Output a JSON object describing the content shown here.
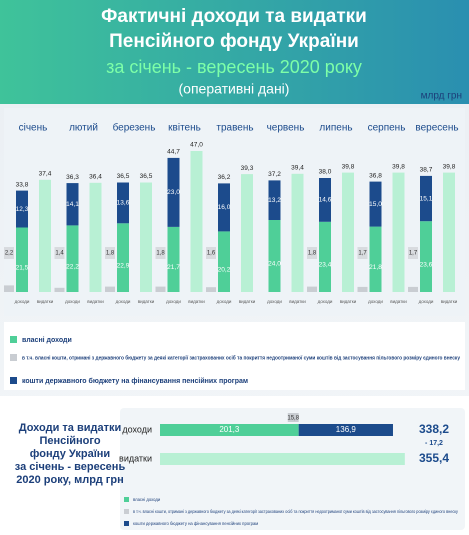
{
  "header": {
    "title_line1": "Фактичні доходи та видатки",
    "title_line2": "Пенсійного фонду України",
    "period": "за січень - вересень 2020 року",
    "note": "(оперативні дані)",
    "unit": "млрд грн"
  },
  "chart_data": [
    {
      "type": "bar",
      "categories": [
        "січень",
        "лютий",
        "березень",
        "квітень",
        "травень",
        "червень",
        "липень",
        "серпень",
        "вересень"
      ],
      "revenue_label": "доходи",
      "ylim": [
        0,
        50
      ],
      "series": [
        {
          "name": "власні доходи",
          "color": "#4fcf98",
          "values": [
            21.5,
            22.2,
            22.9,
            21.7,
            20.2,
            24.0,
            23.4,
            21.8,
            23.6
          ],
          "value_labels": [
            "21,5",
            "22,2",
            "22,9",
            "21,7",
            "20,2",
            "24,0",
            "23,4",
            "21,8",
            "23,6"
          ]
        },
        {
          "name": "в т.ч. власні кошти, отримані з державного бюджету за деякі категорії застрахованих осіб та покриття недоотриманої суми коштів від застосування пільгового розміру єдиного внеску",
          "color": "#c9cdd2",
          "values": [
            2.2,
            1.4,
            1.8,
            1.8,
            1.6,
            null,
            1.8,
            1.7,
            1.7
          ],
          "value_labels": [
            "2,2",
            "1,4",
            "1,8",
            "1,8",
            "1,6",
            null,
            "1,8",
            "1,7",
            "1,7"
          ]
        },
        {
          "name": "кошти державного бюджету на фінансування пенсійних програм",
          "color": "#1c4b8c",
          "values": [
            12.3,
            14.1,
            13.6,
            23.0,
            16.0,
            13.2,
            14.6,
            15.0,
            15.1
          ],
          "value_labels": [
            "12,3",
            "14,1",
            "13,6",
            "23,0",
            "16,0",
            "13,2",
            "14,6",
            "15,0",
            "15,1"
          ]
        },
        {
          "name": "видатки",
          "color": "#b8f0d4",
          "values": [
            37.4,
            36.4,
            36.5,
            47.0,
            39.3,
            39.4,
            39.8,
            39.8,
            39.8
          ],
          "value_labels": [
            "37,4",
            "36,4",
            "36,5",
            "47,0",
            "39,3",
            "39,4",
            "39,8",
            "39,8",
            "39,8"
          ]
        }
      ],
      "totals": [
        33.8,
        36.3,
        36.5,
        44.7,
        36.2,
        37.2,
        38.0,
        36.8,
        38.7
      ],
      "totals_labels": [
        "33,8",
        "36,3",
        "36,5",
        "44,7",
        "36,2",
        "37,2",
        "38,0",
        "36,8",
        "38,7"
      ]
    },
    {
      "type": "hbar",
      "title": "Доходи та видатки Пенсійного фонду України за січень - вересень 2020 року, млрд грн",
      "categories": [
        "доходи",
        "видатки"
      ],
      "xlim": [
        0,
        360
      ],
      "own": 201.3,
      "own_label": "201,3",
      "state": 136.9,
      "state_label": "136,9",
      "included": 15.8,
      "included_label": "15,8",
      "revenue_total": 338.2,
      "revenue_total_label": "338,2",
      "expenditure": 355.4,
      "expenditure_label": "355,4",
      "difference": -17.2,
      "difference_label": "- 17,2"
    }
  ]
}
